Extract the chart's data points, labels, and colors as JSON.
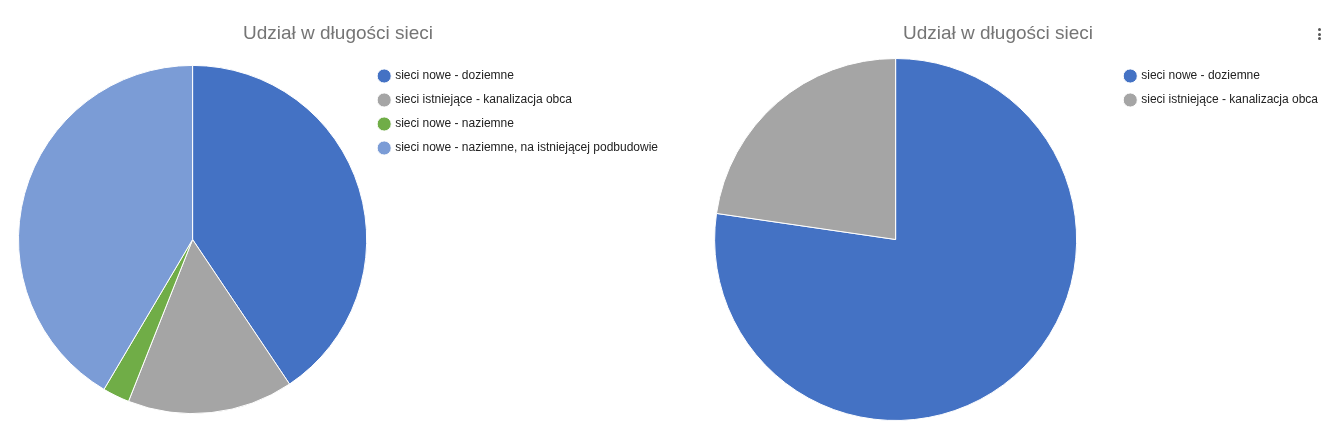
{
  "chart_data": [
    {
      "type": "pie",
      "title": "Udział w długości sieci",
      "categories": [
        "sieci nowe - doziemne",
        "sieci istniejące - kanalizacja obca",
        "sieci nowe - naziemne",
        "sieci nowe - naziemne, na istniejącej podbudowie"
      ],
      "values": [
        40.6,
        15.4,
        2.5,
        41.5
      ],
      "colors": [
        "#4472c4",
        "#a5a5a5",
        "#70ad47",
        "#7b9cd6"
      ],
      "legend": "top right"
    },
    {
      "type": "pie",
      "title": "Udział w długości sieci",
      "categories": [
        "sieci nowe - doziemne",
        "sieci istniejące - kanalizacja obca"
      ],
      "values": [
        77.3,
        22.7
      ],
      "colors": [
        "#4472c4",
        "#a5a5a5"
      ],
      "legend": "top right"
    }
  ]
}
